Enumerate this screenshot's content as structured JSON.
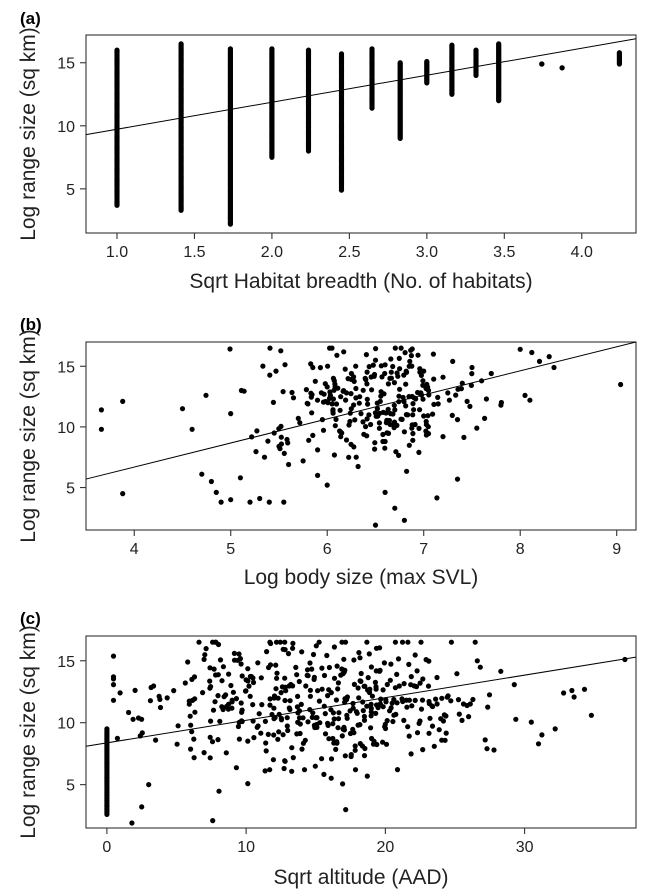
{
  "chart_data": [
    {
      "type": "scatter",
      "panel": "(a)",
      "xlabel": "Sqrt Habitat breadth (No. of habitats)",
      "ylabel": "Log range size (sq km)",
      "xlim": [
        0.8,
        4.35
      ],
      "ylim": [
        1.5,
        17.2
      ],
      "xticks": [
        1.0,
        1.5,
        2.0,
        2.5,
        3.0,
        3.5,
        4.0
      ],
      "xtick_labels": [
        "1.0",
        "1.5",
        "2.0",
        "2.5",
        "3.0",
        "3.5",
        "4.0"
      ],
      "yticks": [
        5,
        10,
        15
      ],
      "ytick_labels": [
        "5",
        "10",
        "15"
      ],
      "fit_line": {
        "x": [
          0.8,
          4.35
        ],
        "y": [
          9.3,
          16.9
        ]
      },
      "columns": [
        {
          "x": 1.0,
          "ymin": 3.7,
          "ymax": 16.0,
          "extra": []
        },
        {
          "x": 1.414,
          "ymin": 3.3,
          "ymax": 16.5,
          "extra": []
        },
        {
          "x": 1.732,
          "ymin": 2.2,
          "ymax": 16.1,
          "extra": [
            2.7
          ]
        },
        {
          "x": 2.0,
          "ymin": 7.5,
          "ymax": 16.1,
          "extra": []
        },
        {
          "x": 2.236,
          "ymin": 8.0,
          "ymax": 16.0,
          "extra": []
        },
        {
          "x": 2.449,
          "ymin": 4.9,
          "ymax": 15.7,
          "extra": [
            6.8
          ]
        },
        {
          "x": 2.646,
          "ymin": 11.4,
          "ymax": 16.1,
          "extra": []
        },
        {
          "x": 2.828,
          "ymin": 9.0,
          "ymax": 15.0,
          "extra": []
        },
        {
          "x": 3.0,
          "ymin": 13.4,
          "ymax": 15.1,
          "extra": []
        },
        {
          "x": 3.162,
          "ymin": 12.5,
          "ymax": 16.4,
          "extra": []
        },
        {
          "x": 3.317,
          "ymin": 14.0,
          "ymax": 16.0,
          "extra": []
        },
        {
          "x": 3.464,
          "ymin": 12.0,
          "ymax": 16.5,
          "extra": []
        },
        {
          "x": 3.742,
          "ymin": 14.9,
          "ymax": 14.9,
          "extra": []
        },
        {
          "x": 3.873,
          "ymin": 14.6,
          "ymax": 14.6,
          "extra": []
        },
        {
          "x": 4.243,
          "ymin": 14.9,
          "ymax": 15.8,
          "extra": []
        }
      ]
    },
    {
      "type": "scatter",
      "panel": "(b)",
      "xlabel": "Log body size (max SVL)",
      "ylabel": "Log range size (sq km)",
      "xlim": [
        3.5,
        9.2
      ],
      "ylim": [
        1.5,
        17.0
      ],
      "xticks": [
        4,
        5,
        6,
        7,
        8,
        9
      ],
      "xtick_labels": [
        "4",
        "5",
        "6",
        "7",
        "8",
        "9"
      ],
      "yticks": [
        5,
        10,
        15
      ],
      "ytick_labels": [
        "5",
        "10",
        "15"
      ],
      "fit_line": {
        "x": [
          3.5,
          9.2
        ],
        "y": [
          5.7,
          17.0
        ]
      },
      "points": [
        [
          3.66,
          11.4
        ],
        [
          3.66,
          9.8
        ],
        [
          3.88,
          12.1
        ],
        [
          3.88,
          4.5
        ],
        [
          4.5,
          11.5
        ],
        [
          4.6,
          9.8
        ],
        [
          4.7,
          6.1
        ],
        [
          4.8,
          5.5
        ],
        [
          4.85,
          4.6
        ],
        [
          4.9,
          3.8
        ],
        [
          5.0,
          4.0
        ],
        [
          5.0,
          11.1
        ],
        [
          5.1,
          5.8
        ],
        [
          5.2,
          3.8
        ],
        [
          5.3,
          4.1
        ],
        [
          5.35,
          7.5
        ],
        [
          5.4,
          3.8
        ],
        [
          5.45,
          9.5
        ],
        [
          5.5,
          8.4
        ],
        [
          5.55,
          3.8
        ],
        [
          5.6,
          6.9
        ],
        [
          5.65,
          12.4
        ],
        [
          5.7,
          10.7
        ],
        [
          5.75,
          7.2
        ],
        [
          5.8,
          11.9
        ],
        [
          5.85,
          9.3
        ],
        [
          5.85,
          14.9
        ],
        [
          5.9,
          6.0
        ],
        [
          5.9,
          8.1
        ],
        [
          5.95,
          10.6
        ],
        [
          6.0,
          13.3
        ],
        [
          6.0,
          5.2
        ],
        [
          6.05,
          11.9
        ],
        [
          6.1,
          15.9
        ],
        [
          6.15,
          9.5
        ],
        [
          6.2,
          12.8
        ],
        [
          6.25,
          14.4
        ],
        [
          6.3,
          7.5
        ],
        [
          6.35,
          11.1
        ],
        [
          6.4,
          13.9
        ],
        [
          6.45,
          10.2
        ],
        [
          6.5,
          15.5
        ],
        [
          6.5,
          1.9
        ],
        [
          6.55,
          12.1
        ],
        [
          6.6,
          8.8
        ],
        [
          6.6,
          4.6
        ],
        [
          6.65,
          14.0
        ],
        [
          6.7,
          3.3
        ],
        [
          6.7,
          11.4
        ],
        [
          6.75,
          13.1
        ],
        [
          6.8,
          2.3
        ],
        [
          6.8,
          9.6
        ],
        [
          6.85,
          15.0
        ],
        [
          6.9,
          12.4
        ],
        [
          6.95,
          7.9
        ],
        [
          7.0,
          14.6
        ],
        [
          7.0,
          10.9
        ],
        [
          7.05,
          13.0
        ],
        [
          7.1,
          16.0
        ],
        [
          7.15,
          11.9
        ],
        [
          7.2,
          9.2
        ],
        [
          7.2,
          14.1
        ],
        [
          7.25,
          12.8
        ],
        [
          7.3,
          15.4
        ],
        [
          7.35,
          5.7
        ],
        [
          7.35,
          10.6
        ],
        [
          7.4,
          13.6
        ],
        [
          7.45,
          12.1
        ],
        [
          7.5,
          14.9
        ],
        [
          7.55,
          9.9
        ],
        [
          7.6,
          13.8
        ],
        [
          7.65,
          12.3
        ],
        [
          7.7,
          14.4
        ],
        [
          7.8,
          11.8
        ],
        [
          8.0,
          16.4
        ],
        [
          8.05,
          12.6
        ],
        [
          8.1,
          12.2
        ],
        [
          8.2,
          15.4
        ],
        [
          8.3,
          15.8
        ],
        [
          8.35,
          14.9
        ],
        [
          9.04,
          13.5
        ]
      ],
      "cloud": {
        "x_mean": 6.45,
        "x_sd": 0.55,
        "y_mean": 12.3,
        "y_sd": 2.3,
        "n": 240
      }
    },
    {
      "type": "scatter",
      "panel": "(c)",
      "xlabel": "Sqrt altitude (AAD)",
      "ylabel": "Log range size (sq km)",
      "xlim": [
        -1.5,
        38
      ],
      "ylim": [
        1.5,
        17.0
      ],
      "xticks": [
        0,
        10,
        20,
        30
      ],
      "xtick_labels": [
        "0",
        "10",
        "20",
        "30"
      ],
      "yticks": [
        5,
        10,
        15
      ],
      "ytick_labels": [
        "5",
        "10",
        "15"
      ],
      "fit_line": {
        "x": [
          -1.5,
          38
        ],
        "y": [
          8.1,
          15.3
        ]
      },
      "zero_column": {
        "x": 0,
        "ymin": 2.6,
        "ymax": 9.5
      },
      "points": [
        [
          1.8,
          1.9
        ],
        [
          2.5,
          3.2
        ],
        [
          3.0,
          5.0
        ],
        [
          3.5,
          8.6
        ],
        [
          7.6,
          2.1
        ],
        [
          26.6,
          15.0
        ],
        [
          27.3,
          7.9
        ],
        [
          27.8,
          7.8
        ],
        [
          31.0,
          8.3
        ],
        [
          32.2,
          9.5
        ],
        [
          32.8,
          12.4
        ],
        [
          33.4,
          12.6
        ],
        [
          34.3,
          12.7
        ],
        [
          34.8,
          10.6
        ],
        [
          37.2,
          15.1
        ]
      ],
      "cloud": {
        "x_mean": 15.5,
        "x_sd": 6.2,
        "y_mean": 11.7,
        "y_sd": 2.7,
        "n": 460
      }
    }
  ]
}
